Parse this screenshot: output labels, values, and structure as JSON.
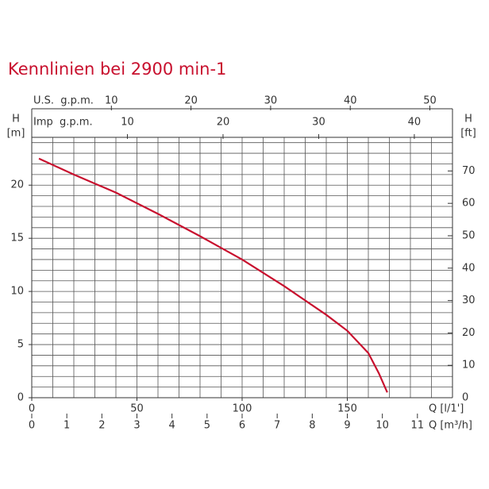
{
  "chart_data": {
    "type": "line",
    "title": "Kennlinien bei 2900 min-1",
    "x_label": "Q [l/1']",
    "y_label": "H",
    "y_unit": "[m]",
    "y2_label": "H",
    "y2_unit": "[ft]",
    "x": [
      3.4,
      20,
      40,
      60,
      80,
      100,
      120,
      140,
      150,
      160,
      165,
      169
    ],
    "values": [
      22.5,
      21,
      19.3,
      17.3,
      15.2,
      13,
      10.5,
      7.8,
      6.3,
      4.2,
      2.3,
      0.5
    ],
    "color": "#c8102e",
    "xlim": [
      0,
      200
    ],
    "xticks": [
      0,
      50,
      100,
      150
    ],
    "ylim": [
      0,
      24.5
    ],
    "yticks": [
      0,
      5,
      10,
      15,
      20
    ],
    "y2lim": [
      0,
      80.38
    ],
    "y2ticks": [
      0,
      10,
      20,
      30,
      40,
      50,
      60,
      70
    ],
    "x_minor_ticks": [
      0,
      10,
      20,
      30,
      40,
      50,
      60,
      70,
      80,
      90,
      100,
      110,
      120,
      130,
      140,
      150,
      160,
      170,
      180,
      190,
      200
    ],
    "y_minor_ticks": [
      0,
      1,
      2,
      3,
      4,
      5,
      6,
      7,
      8,
      9,
      10,
      11,
      12,
      13,
      14,
      15,
      16,
      17,
      18,
      19,
      20,
      21,
      22,
      23,
      24
    ],
    "grid": true,
    "extra_x_axes": [
      {
        "label": "Q [m³/h]",
        "xlim": [
          0,
          12
        ],
        "xticks": [
          0,
          1,
          2,
          3,
          4,
          5,
          6,
          7,
          8,
          9,
          10,
          11
        ],
        "position": "bottom"
      },
      {
        "label": "U.S.  g.p.m.",
        "xlim": [
          0,
          52.84
        ],
        "xticks": [
          10,
          20,
          30,
          40,
          50
        ],
        "position": "top"
      },
      {
        "label": "Imp  g.p.m.",
        "xlim": [
          0,
          43.99
        ],
        "xticks": [
          10,
          20,
          30,
          40
        ],
        "position": "top"
      }
    ]
  }
}
